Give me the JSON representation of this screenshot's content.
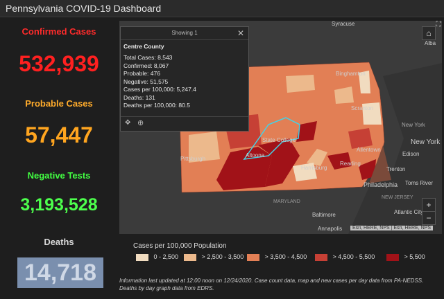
{
  "header": {
    "title": "Pennsylvania COVID-19 Dashboard"
  },
  "stats": {
    "confirmed_label": "Confirmed Cases",
    "confirmed_value": "532,939",
    "probable_label": "Probable Cases",
    "probable_value": "57,447",
    "negative_label": "Negative Tests",
    "negative_value": "3,193,528",
    "deaths_label": "Deaths",
    "deaths_value": "14,718"
  },
  "popup": {
    "header": "Showing 1",
    "county": "Centre County",
    "rows": [
      "Total Cases: 8,543",
      "Confirmed: 8,067",
      "Probable: 476",
      "Negative: 51,575",
      "Cases per 100,000: 5,247.4",
      "Deaths: 131",
      "Deaths per 100,000: 80.5"
    ]
  },
  "map": {
    "labels": {
      "syracuse": "Syracuse",
      "albany": "Alba",
      "binghamton": "Binghamton",
      "scranton": "Scranton",
      "new_york": "New York",
      "new_york2": "New York",
      "edison": "Edison",
      "allentown": "Allentown",
      "trenton": "Trenton",
      "toms_river": "Toms River",
      "philadelphia": "Philadelphia",
      "reading": "Reading",
      "harrisburg": "Harrisburg",
      "new_jersey": "NEW JERSEY",
      "state_college": "State College",
      "altoona": "Altoona",
      "pittsburgh": "Pittsburgh",
      "baltimore": "Baltimore",
      "annapolis": "Annapolis",
      "atlantic_city": "Atlantic City",
      "maryland": "MARYLAND"
    },
    "attribution": "Esri, HERE, NPS | Esri, HERE, NPS"
  },
  "legend": {
    "title": "Cases per 100,000 Population",
    "items": [
      {
        "label": "0 - 2,500",
        "color": "#f1dcc0"
      },
      {
        "label": "> 2,500 - 3,500",
        "color": "#ecb98c"
      },
      {
        "label": "> 3,500 - 4,500",
        "color": "#e27f55"
      },
      {
        "label": "> 4,500 - 5,500",
        "color": "#c64035"
      },
      {
        "label": "> 5,500",
        "color": "#a11218"
      }
    ]
  },
  "info": "Information last updated at 12:00 noon on 12/24/2020. Case count data, map and new cases per day data from PA-NEDSS.  Deaths by day graph data from EDRS."
}
